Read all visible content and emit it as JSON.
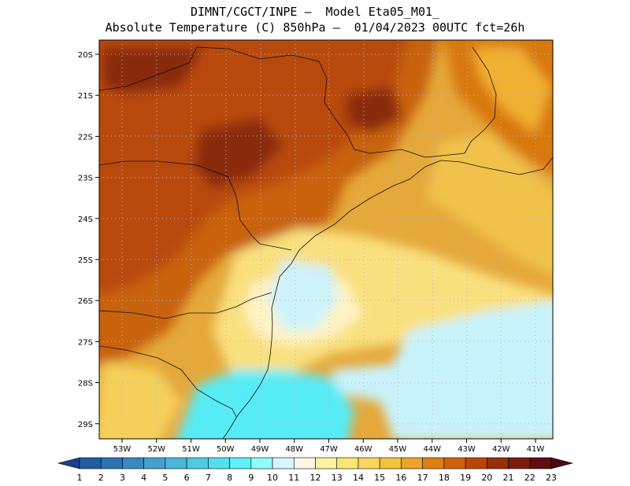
{
  "header": {
    "line1": "DIMNT/CGCT/INPE —  Model Eta05_M01_",
    "line2": "Absolute Temperature (C) 850hPa —  01/04/2023 00UTC fct=26h"
  },
  "map": {
    "lon_ticks": [
      "53W",
      "52W",
      "51W",
      "50W",
      "49W",
      "48W",
      "47W",
      "46W",
      "45W",
      "44W",
      "43W",
      "42W",
      "41W"
    ],
    "lat_ticks": [
      "20S",
      "21S",
      "22S",
      "23S",
      "24S",
      "25S",
      "26S",
      "27S",
      "28S",
      "29S"
    ],
    "grid": "dotted",
    "background_field": "850hPa temperature shaded"
  },
  "colorbar": {
    "labels": [
      "1",
      "2",
      "3",
      "4",
      "5",
      "6",
      "7",
      "8",
      "9",
      "10",
      "11",
      "12",
      "13",
      "14",
      "15",
      "16",
      "17",
      "18",
      "19",
      "20",
      "21",
      "22",
      "23"
    ],
    "colors": [
      "#1a3f8c",
      "#1f5ea5",
      "#2a74b4",
      "#3889c0",
      "#44a0cc",
      "#4ab6d8",
      "#4ecbe3",
      "#54dfee",
      "#5ef0f8",
      "#8ffcff",
      "#d8f6fb",
      "#fdf7e4",
      "#fdf1a4",
      "#fbe575",
      "#f8d75a",
      "#f2c23c",
      "#eba427",
      "#df7f14",
      "#cf600c",
      "#b84608",
      "#9a2e08",
      "#7a1d0a",
      "#5f0f10",
      "#4a0a14"
    ]
  }
}
